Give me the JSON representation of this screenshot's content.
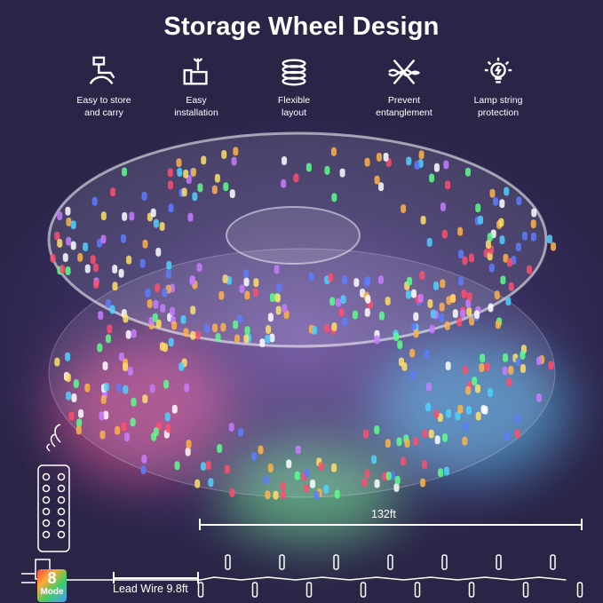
{
  "title": "Storage Wheel Design",
  "features": [
    {
      "icon": "hand-carry-icon",
      "label1": "Easy to store",
      "label2": "and carry"
    },
    {
      "icon": "thumbs-up-wrench-icon",
      "label1": "Easy",
      "label2": "installation"
    },
    {
      "icon": "coil-icon",
      "label1": "Flexible",
      "label2": "layout"
    },
    {
      "icon": "no-tangle-icon",
      "label1": "Prevent",
      "label2": "entanglement"
    },
    {
      "icon": "bulb-icon",
      "label1": "Lamp string",
      "label2": "protection"
    }
  ],
  "length_label": "132ft",
  "lead_wire_label": "Lead Wire 9.8ft",
  "mode_badge": {
    "number": "8",
    "label": "Mode"
  },
  "light_colors": [
    "#ff4d6d",
    "#ffb347",
    "#ffe066",
    "#5cff8a",
    "#4dd2ff",
    "#5c7cff",
    "#c77dff",
    "#ffffff"
  ]
}
